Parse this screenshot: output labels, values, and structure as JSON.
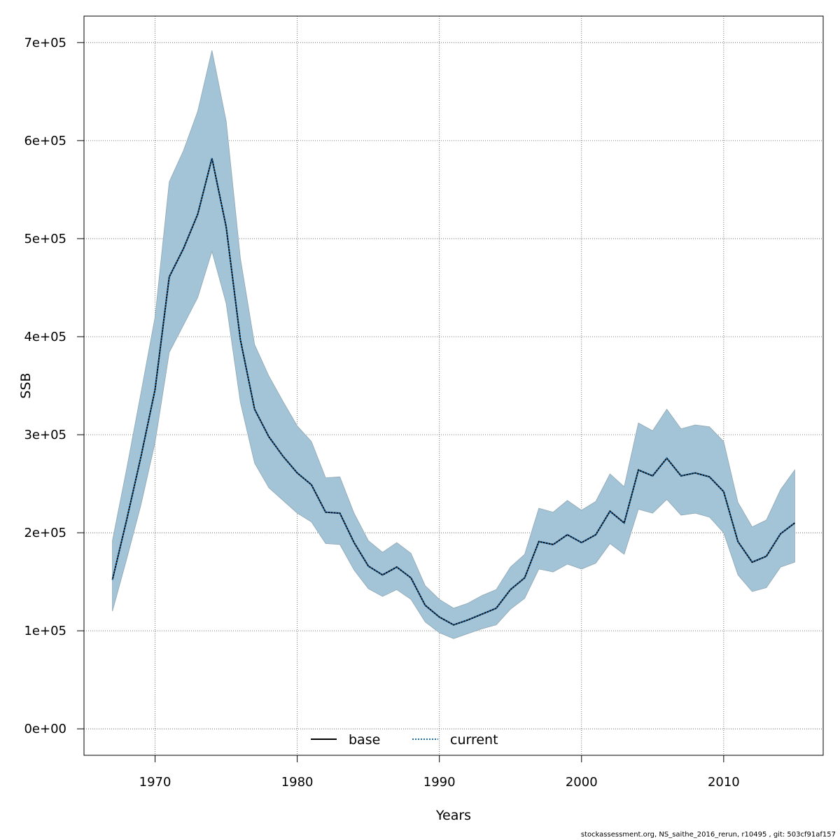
{
  "chart_data": {
    "type": "line",
    "xlabel": "Years",
    "ylabel": "SSB",
    "xlim": [
      1965.0,
      2017.0
    ],
    "ylim": [
      -27000,
      727000
    ],
    "x_ticks": [
      1970,
      1980,
      1990,
      2000,
      2010
    ],
    "x_tick_labels": [
      "1970",
      "1980",
      "1990",
      "2000",
      "2010"
    ],
    "y_ticks": [
      0,
      100000,
      200000,
      300000,
      400000,
      500000,
      600000,
      700000
    ],
    "y_tick_labels": [
      "0e+00",
      "1e+05",
      "2e+05",
      "3e+05",
      "4e+05",
      "5e+05",
      "6e+05",
      "7e+05"
    ],
    "grid": true,
    "legend_position": "bottom-center",
    "band_color": "#a3c4d6",
    "x": [
      1967,
      1968,
      1969,
      1970,
      1971,
      1972,
      1973,
      1974,
      1975,
      1976,
      1977,
      1978,
      1979,
      1980,
      1981,
      1982,
      1983,
      1984,
      1985,
      1986,
      1987,
      1988,
      1989,
      1990,
      1991,
      1992,
      1993,
      1994,
      1995,
      1996,
      1997,
      1998,
      1999,
      2000,
      2001,
      2002,
      2003,
      2004,
      2005,
      2006,
      2007,
      2008,
      2009,
      2010,
      2011,
      2012,
      2013,
      2014,
      2015
    ],
    "band_upper": [
      192000,
      265000,
      342000,
      420000,
      558000,
      590000,
      630000,
      692000,
      620000,
      480000,
      392000,
      360000,
      334000,
      309000,
      293000,
      256000,
      257000,
      220000,
      192000,
      180000,
      190000,
      179000,
      146000,
      132000,
      123000,
      128000,
      136000,
      142000,
      165000,
      178000,
      225000,
      221000,
      233000,
      223000,
      232000,
      260000,
      247000,
      312000,
      304000,
      326000,
      306000,
      310000,
      308000,
      293000,
      231000,
      206000,
      213000,
      244000,
      264000
    ],
    "band_lower": [
      120000,
      173000,
      228000,
      292000,
      384000,
      412000,
      440000,
      487000,
      434000,
      333000,
      271000,
      246000,
      233000,
      220000,
      211000,
      189000,
      188000,
      162000,
      143000,
      135000,
      142000,
      132000,
      109000,
      98000,
      92000,
      97000,
      102000,
      106000,
      122000,
      133000,
      163000,
      160000,
      168000,
      163000,
      169000,
      189000,
      178000,
      224000,
      220000,
      234000,
      218000,
      220000,
      216000,
      200000,
      157000,
      140000,
      144000,
      165000,
      170000
    ],
    "series": [
      {
        "name": "base",
        "style": "solid",
        "color": "#000000",
        "values": [
          152000,
          213000,
          277000,
          346000,
          461000,
          490000,
          525000,
          582000,
          512000,
          397000,
          326000,
          298000,
          278000,
          261000,
          249000,
          221000,
          220000,
          190000,
          166000,
          157000,
          165000,
          154000,
          126000,
          114000,
          106000,
          111000,
          117000,
          123000,
          142000,
          154000,
          191000,
          188000,
          198000,
          190000,
          198000,
          222000,
          210000,
          264000,
          258000,
          276000,
          258000,
          261000,
          257000,
          242000,
          191000,
          170000,
          176000,
          199000,
          210000
        ]
      },
      {
        "name": "current",
        "style": "dotted",
        "color": "#1a6aa8",
        "values": [
          152000,
          213000,
          277000,
          346000,
          461000,
          490000,
          525000,
          582000,
          512000,
          397000,
          326000,
          298000,
          278000,
          261000,
          249000,
          221000,
          220000,
          190000,
          166000,
          157000,
          165000,
          154000,
          126000,
          114000,
          106000,
          111000,
          117000,
          123000,
          142000,
          154000,
          191000,
          188000,
          198000,
          190000,
          198000,
          222000,
          210000,
          264000,
          258000,
          276000,
          258000,
          261000,
          257000,
          242000,
          191000,
          170000,
          176000,
          199000,
          210000
        ]
      }
    ]
  },
  "footer_text": "stockassessment.org, NS_saithe_2016_rerun, r10495 , git: 503cf91af157"
}
